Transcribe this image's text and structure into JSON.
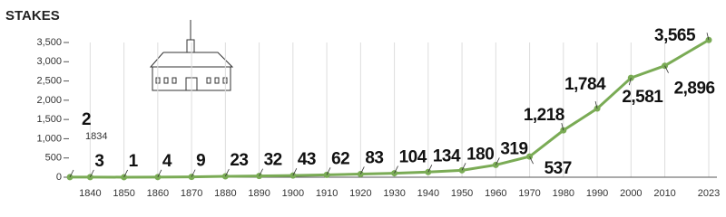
{
  "chart_data": {
    "type": "line",
    "title": "STAKES",
    "x": [
      1834,
      1840,
      1850,
      1860,
      1870,
      1880,
      1890,
      1900,
      1910,
      1920,
      1930,
      1940,
      1950,
      1960,
      1970,
      1980,
      1990,
      2000,
      2010,
      2023
    ],
    "series": [
      {
        "name": "Stakes",
        "color": "#7aab55",
        "values": [
          2,
          3,
          1,
          4,
          9,
          23,
          32,
          43,
          62,
          83,
          104,
          134,
          180,
          319,
          537,
          1218,
          1784,
          2581,
          2896,
          3565
        ],
        "value_labels": [
          "2",
          "3",
          "1",
          "4",
          "9",
          "23",
          "32",
          "43",
          "62",
          "83",
          "104",
          "134",
          "180",
          "319",
          "537",
          "1,218",
          "1,784",
          "2,581",
          "2,896",
          "3,565"
        ]
      }
    ],
    "xlim": [
      1834,
      2023
    ],
    "xticks": [
      1840,
      1850,
      1860,
      1870,
      1880,
      1890,
      1900,
      1910,
      1920,
      1930,
      1940,
      1950,
      1960,
      1970,
      1980,
      1990,
      2000,
      2010,
      2023
    ],
    "ylim": [
      0,
      3500
    ],
    "yticks": [
      0,
      500,
      {
        "value": 1000,
        "label": "1,000"
      },
      {
        "value": 1500,
        "label": "1,500"
      },
      {
        "value": 2000,
        "label": "2,000"
      },
      {
        "value": 2500,
        "label": "2,500"
      },
      {
        "value": 3000,
        "label": "3,000"
      },
      {
        "value": 3500,
        "label": "3,500"
      }
    ],
    "grid": true
  }
}
